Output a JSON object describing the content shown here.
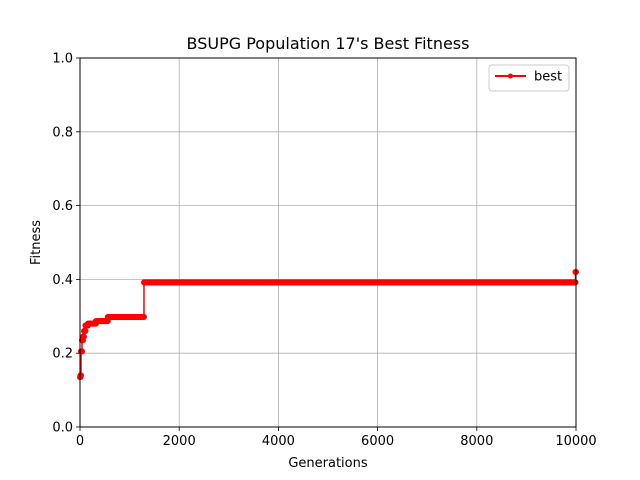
{
  "chart_data": {
    "type": "line",
    "title": "BSUPG Population 17's Best Fitness",
    "xlabel": "Generations",
    "ylabel": "Fitness",
    "xlim": [
      0,
      10000
    ],
    "ylim": [
      0.0,
      1.0
    ],
    "xticks": [
      0,
      2000,
      4000,
      6000,
      8000,
      10000
    ],
    "xtick_labels": [
      "0",
      "2000",
      "4000",
      "6000",
      "8000",
      "10000"
    ],
    "yticks": [
      0.0,
      0.2,
      0.4,
      0.6,
      0.8,
      1.0
    ],
    "ytick_labels": [
      "0.0",
      "0.2",
      "0.4",
      "0.6",
      "0.8",
      "1.0"
    ],
    "grid": true,
    "legend_position": "top-right",
    "colors": {
      "best": "#ff0000",
      "grid": "#b0b0b0"
    },
    "series": [
      {
        "name": "best",
        "marker": "dot",
        "steps": [
          {
            "x_start": 0,
            "x_end": 10,
            "y": 0.135
          },
          {
            "x_start": 10,
            "x_end": 20,
            "y": 0.14
          },
          {
            "x_start": 20,
            "x_end": 40,
            "y": 0.205
          },
          {
            "x_start": 40,
            "x_end": 60,
            "y": 0.235
          },
          {
            "x_start": 60,
            "x_end": 80,
            "y": 0.245
          },
          {
            "x_start": 80,
            "x_end": 110,
            "y": 0.26
          },
          {
            "x_start": 110,
            "x_end": 160,
            "y": 0.275
          },
          {
            "x_start": 160,
            "x_end": 320,
            "y": 0.28
          },
          {
            "x_start": 320,
            "x_end": 560,
            "y": 0.287
          },
          {
            "x_start": 560,
            "x_end": 1290,
            "y": 0.298
          },
          {
            "x_start": 1290,
            "x_end": 9990,
            "y": 0.392
          },
          {
            "x_start": 9990,
            "x_end": 10000,
            "y": 0.42
          }
        ]
      }
    ]
  }
}
